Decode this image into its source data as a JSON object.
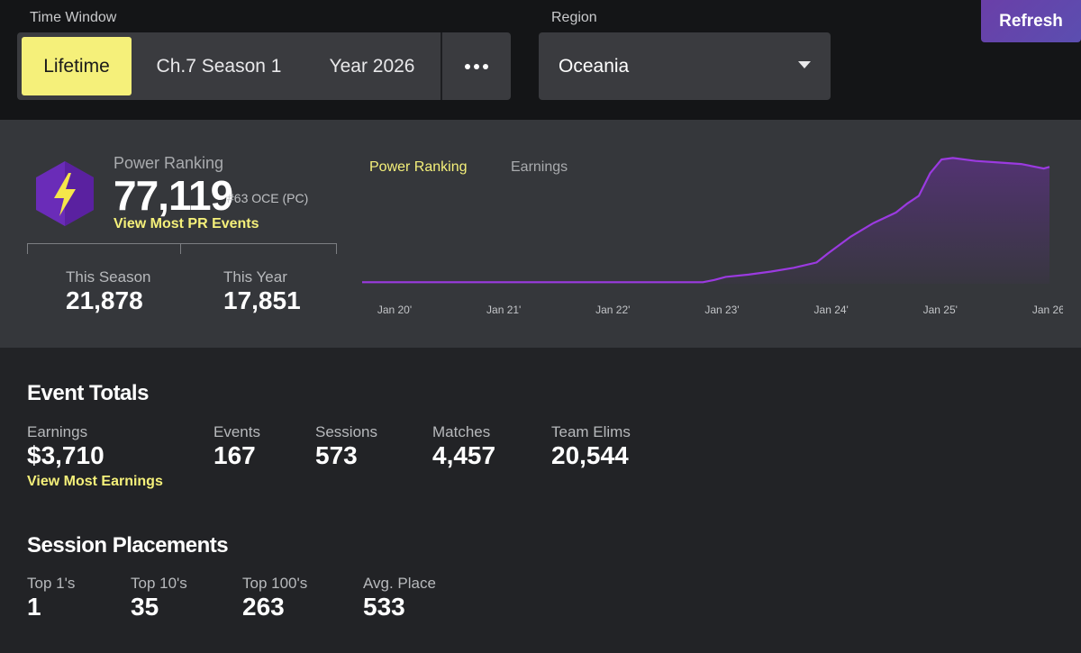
{
  "filters": {
    "time_window_label": "Time Window",
    "time_options": [
      "Lifetime",
      "Ch.7 Season 1",
      "Year 2026"
    ],
    "active_time": "Lifetime",
    "region_label": "Region",
    "region_value": "Oceania",
    "refresh_label": "Refresh"
  },
  "power_ranking": {
    "title": "Power Ranking",
    "value": "77,119",
    "rank": "#63 OCE (PC)",
    "link": "View Most PR Events",
    "this_season_label": "This Season",
    "this_season_value": "21,878",
    "this_year_label": "This Year",
    "this_year_value": "17,851"
  },
  "chart_tabs": {
    "active": "Power Ranking",
    "inactive": "Earnings"
  },
  "chart_data": {
    "type": "area",
    "x_labels": [
      "Jan 20'",
      "Jan 21'",
      "Jan 22'",
      "Jan 23'",
      "Jan 24'",
      "Jan 25'",
      "Jan 26'"
    ],
    "line_color": "#9b3ae0",
    "x": [
      0,
      0.5,
      1,
      1.5,
      2,
      2.5,
      3,
      3.1,
      3.2,
      3.4,
      3.6,
      3.8,
      4.0,
      4.1,
      4.3,
      4.5,
      4.7,
      4.8,
      4.9,
      5.0,
      5.1,
      5.2,
      5.4,
      5.6,
      5.8,
      6.0,
      6.05
    ],
    "y": [
      1000,
      1000,
      1000,
      1000,
      1000,
      1000,
      1000,
      2500,
      4500,
      6000,
      8000,
      10500,
      14000,
      20000,
      31000,
      40000,
      47000,
      53000,
      58000,
      73000,
      82000,
      83000,
      81000,
      80000,
      79000,
      76000,
      77119
    ]
  },
  "event_totals": {
    "title": "Event Totals",
    "earnings_label": "Earnings",
    "earnings_value": "$3,710",
    "earnings_link": "View Most Earnings",
    "events_label": "Events",
    "events_value": "167",
    "sessions_label": "Sessions",
    "sessions_value": "573",
    "matches_label": "Matches",
    "matches_value": "4,457",
    "team_elims_label": "Team Elims",
    "team_elims_value": "20,544"
  },
  "session_placements": {
    "title": "Session Placements",
    "top1_label": "Top 1's",
    "top1_value": "1",
    "top10_label": "Top 10's",
    "top10_value": "35",
    "top100_label": "Top 100's",
    "top100_value": "263",
    "avg_label": "Avg. Place",
    "avg_value": "533"
  }
}
